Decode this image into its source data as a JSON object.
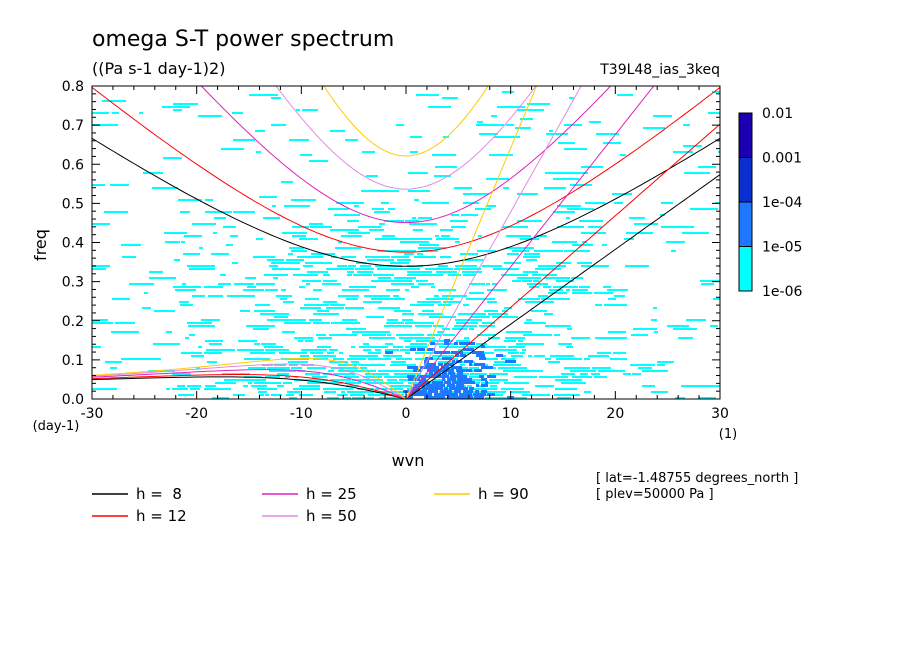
{
  "chart_data": {
    "type": "heatmap",
    "title": "omega S-T power spectrum",
    "subtitle": "((Pa s-1 day-1)2)",
    "run_label": "T39L48_ias_3keq",
    "xlabel": "wvn",
    "ylabel": "freq",
    "x_unit": "(1)",
    "y_unit": "(day-1)",
    "xlim": [
      -30,
      30
    ],
    "ylim": [
      0,
      0.8
    ],
    "x_ticks": [
      "-30",
      "-20",
      "-10",
      "0",
      "10",
      "20",
      "30"
    ],
    "y_ticks": [
      "0.0",
      "0.1",
      "0.2",
      "0.3",
      "0.4",
      "0.5",
      "0.6",
      "0.7",
      "0.8"
    ],
    "colorbar": {
      "levels": [
        "1e-06",
        "1e-05",
        "1e-04",
        "0.001",
        "0.01"
      ],
      "colors": [
        "#00ffff",
        "#1e78ff",
        "#0a2fd0",
        "#1a00b0"
      ]
    },
    "shading_colors": {
      "light": "#00ffff",
      "mid": "#1e78ff"
    },
    "dispersion_curves": [
      {
        "name": "h =  8",
        "h": 8,
        "color": "#000000"
      },
      {
        "name": "h = 12",
        "h": 12,
        "color": "#ff0000"
      },
      {
        "name": "h = 25",
        "h": 25,
        "color": "#e020c0"
      },
      {
        "name": "h = 50",
        "h": 50,
        "color": "#e08ce0"
      },
      {
        "name": "h = 90",
        "h": 90,
        "color": "#ffcc00"
      }
    ],
    "info_lines": [
      "[ lat=-1.48755 degrees_north ]",
      "[ plev=50000 Pa ]"
    ]
  }
}
